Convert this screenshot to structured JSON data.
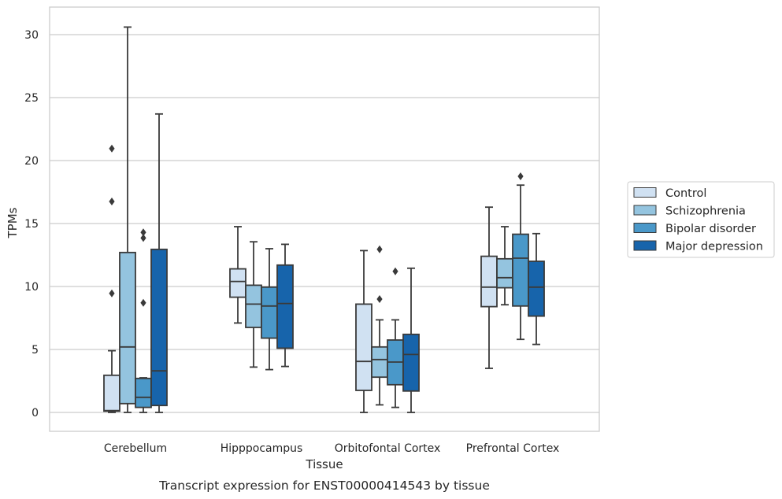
{
  "caption": "Transcript expression for ENST00000414543 by tissue",
  "colors": {
    "Control": "#d0e1f2",
    "Schizophrenia": "#94c4df",
    "Bipolar disorder": "#4a98c9",
    "Major depression": "#1764ab",
    "line": "#3a3a3a",
    "grid": "#cccccc",
    "frame": "#cccccc"
  },
  "chart_data": {
    "type": "box",
    "xlabel": "Tissue",
    "ylabel": "TPMs",
    "ylim": [
      -1.5,
      32.2
    ],
    "yticks": [
      0,
      5,
      10,
      15,
      20,
      25,
      30
    ],
    "grid": "horizontal",
    "legend_position": "right",
    "categories": [
      "Cerebellum",
      "Hipppocampus",
      "Orbitofontal Cortex",
      "Prefrontal Cortex"
    ],
    "series": [
      {
        "name": "Control",
        "boxes": [
          {
            "whislo": 0.0,
            "q1": 0.1,
            "med": 0.15,
            "q3": 2.95,
            "whishi": 4.9,
            "fliers": [
              9.45,
              16.75,
              20.95
            ]
          },
          {
            "whislo": 7.1,
            "q1": 9.15,
            "med": 10.4,
            "q3": 11.4,
            "whishi": 14.75,
            "fliers": []
          },
          {
            "whislo": 0.0,
            "q1": 1.75,
            "med": 4.05,
            "q3": 8.6,
            "whishi": 12.85,
            "fliers": []
          },
          {
            "whislo": 3.5,
            "q1": 8.4,
            "med": 9.95,
            "q3": 12.4,
            "whishi": 16.3,
            "fliers": []
          }
        ]
      },
      {
        "name": "Schizophrenia",
        "boxes": [
          {
            "whislo": 0.0,
            "q1": 0.7,
            "med": 5.2,
            "q3": 12.7,
            "whishi": 30.6,
            "fliers": []
          },
          {
            "whislo": 3.6,
            "q1": 6.75,
            "med": 8.6,
            "q3": 10.1,
            "whishi": 13.55,
            "fliers": []
          },
          {
            "whislo": 0.6,
            "q1": 2.8,
            "med": 4.2,
            "q3": 5.2,
            "whishi": 7.35,
            "fliers": [
              9.0,
              12.95
            ]
          },
          {
            "whislo": 8.55,
            "q1": 9.9,
            "med": 10.7,
            "q3": 12.2,
            "whishi": 14.75,
            "fliers": []
          }
        ]
      },
      {
        "name": "Bipolar disorder",
        "boxes": [
          {
            "whislo": 0.0,
            "q1": 0.4,
            "med": 1.2,
            "q3": 2.7,
            "whishi": 2.75,
            "fliers": [
              8.7,
              13.85,
              14.3
            ]
          },
          {
            "whislo": 3.4,
            "q1": 5.9,
            "med": 8.45,
            "q3": 9.95,
            "whishi": 13.0,
            "fliers": []
          },
          {
            "whislo": 0.4,
            "q1": 2.2,
            "med": 4.0,
            "q3": 5.75,
            "whishi": 7.35,
            "fliers": [
              11.2
            ]
          },
          {
            "whislo": 5.8,
            "q1": 8.45,
            "med": 12.25,
            "q3": 14.15,
            "whishi": 18.05,
            "fliers": [
              18.75
            ]
          }
        ]
      },
      {
        "name": "Major depression",
        "boxes": [
          {
            "whislo": 0.0,
            "q1": 0.55,
            "med": 3.3,
            "q3": 12.95,
            "whishi": 23.7,
            "fliers": []
          },
          {
            "whislo": 3.65,
            "q1": 5.1,
            "med": 8.65,
            "q3": 11.7,
            "whishi": 13.35,
            "fliers": []
          },
          {
            "whislo": 0.0,
            "q1": 1.7,
            "med": 4.6,
            "q3": 6.2,
            "whishi": 11.45,
            "fliers": []
          },
          {
            "whislo": 5.4,
            "q1": 7.65,
            "med": 9.95,
            "q3": 12.0,
            "whishi": 14.2,
            "fliers": []
          }
        ]
      }
    ]
  }
}
